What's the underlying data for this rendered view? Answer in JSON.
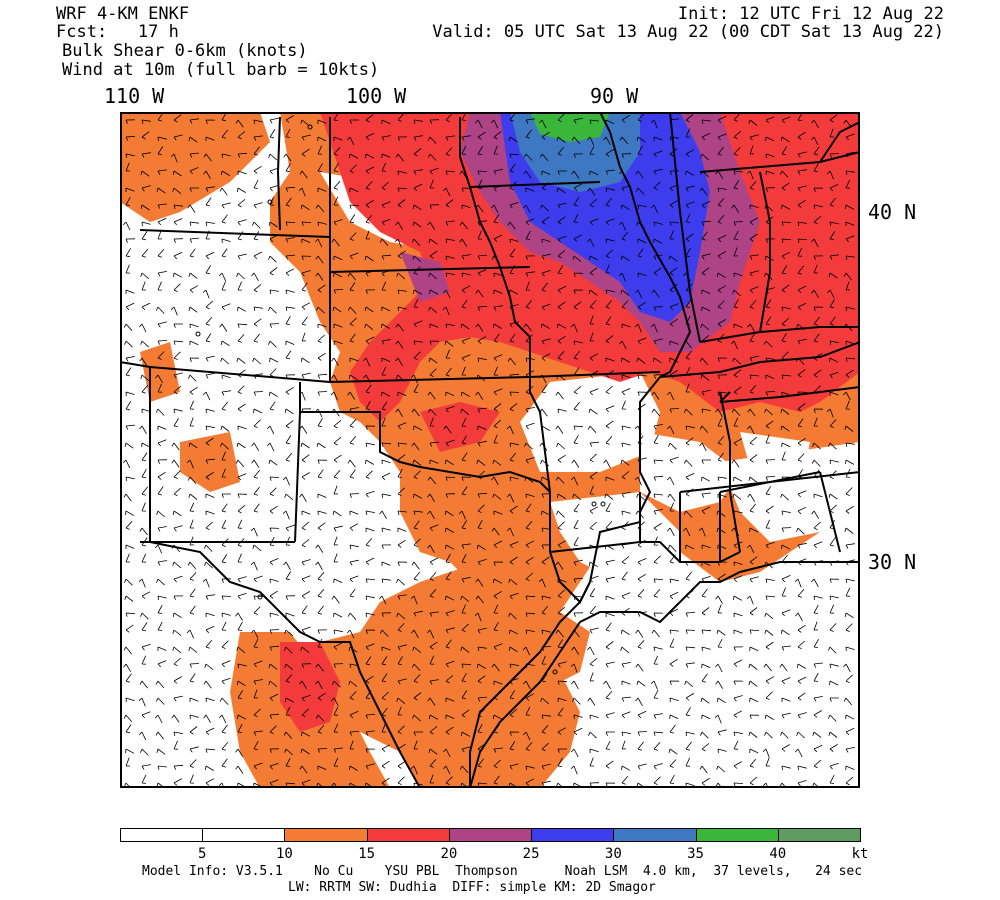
{
  "header": {
    "model": "WRF 4-KM ENKF",
    "fcst": "Fcst:   17 h",
    "field1": "Bulk Shear 0-6km (knots)",
    "field2": "Wind at 10m (full barb = 10kts)",
    "init": "Init: 12 UTC Fri 12 Aug 22",
    "valid": "Valid: 05 UTC Sat 13 Aug 22 (00 CDT Sat 13 Aug 22)"
  },
  "map": {
    "lon_labels": [
      "110 W",
      "100 W",
      "90 W"
    ],
    "lat_labels": [
      "40 N",
      "30 N"
    ],
    "colors": {
      "white": "#ffffff",
      "orange": "#f47b34",
      "red": "#f33b3b",
      "magenta": "#ae4385",
      "blue": "#3d3dee",
      "steelblue": "#3f78c2",
      "green": "#3ab63a",
      "darkgreen": "#5f9c5f"
    }
  },
  "colorbar": {
    "colors": [
      "#ffffff",
      "#ffffff",
      "#f47b34",
      "#f33b3b",
      "#ae4385",
      "#3d3dee",
      "#3f78c2",
      "#3ab63a",
      "#5f9c5f"
    ],
    "tick_labels": [
      "5",
      "10",
      "15",
      "20",
      "25",
      "30",
      "35",
      "40",
      "kt"
    ]
  },
  "footer": {
    "line1": "Model Info: V3.5.1    No Cu    YSU PBL  Thompson      Noah LSM  4.0 km,  37 levels,   24 sec",
    "line2": "LW: RRTM SW: Dudhia  DIFF: simple KM: 2D Smagor"
  }
}
